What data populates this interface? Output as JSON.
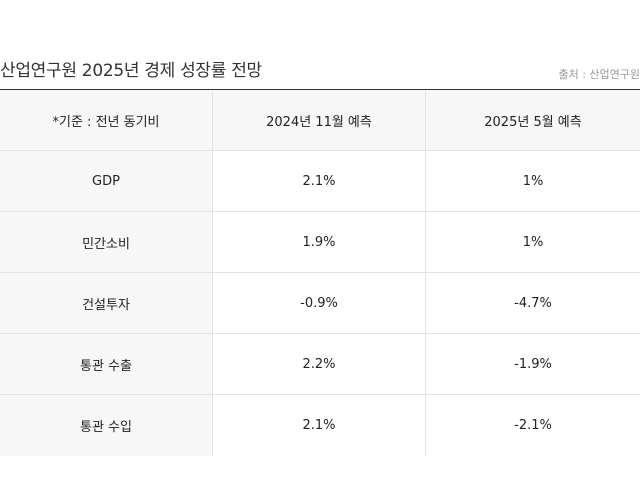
{
  "title": "산업연구원 2025년 경제 성장률 전망",
  "source": "출처 : 산업연구원",
  "table": {
    "headers": [
      "*기준 : 전년 동기비",
      "2024년 11월 예측",
      "2025년 5월 예측"
    ],
    "rows": [
      {
        "label": "GDP",
        "nov2024": "2.1%",
        "may2025": "1%"
      },
      {
        "label": "민간소비",
        "nov2024": "1.9%",
        "may2025": "1%"
      },
      {
        "label": "건설투자",
        "nov2024": "-0.9%",
        "may2025": "-4.7%"
      },
      {
        "label": "통관 수출",
        "nov2024": "2.2%",
        "may2025": "-1.9%"
      },
      {
        "label": "통관 수입",
        "nov2024": "2.1%",
        "may2025": "-2.1%"
      }
    ]
  }
}
